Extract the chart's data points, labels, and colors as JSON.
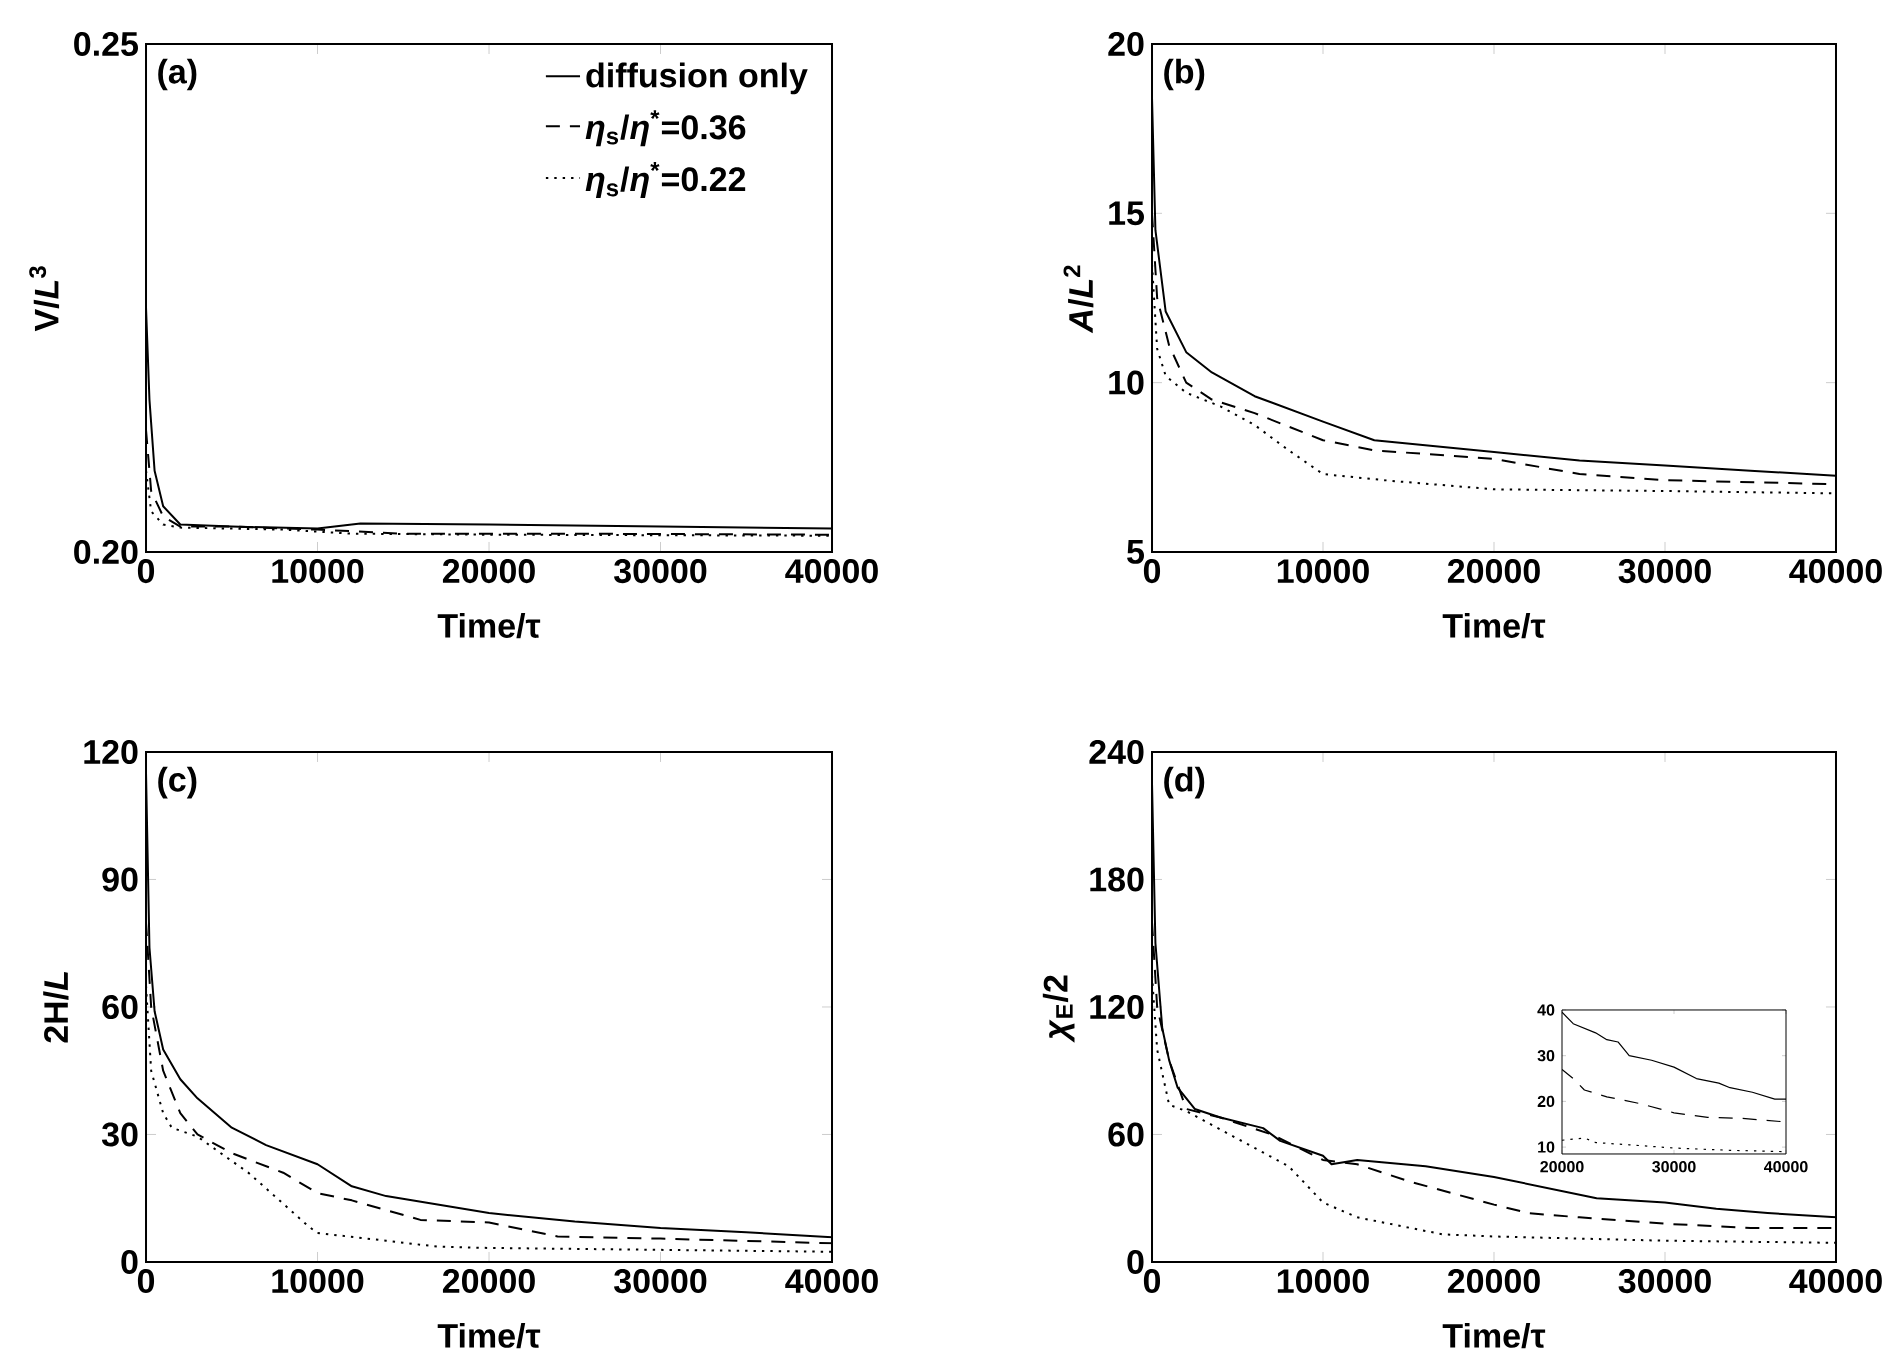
{
  "chart_data": [
    {
      "type": "line",
      "xlabel": "Time/τ",
      "ylabel": "V/*L*$^{3}$",
      "annotations": [
        "(a)"
      ],
      "xlim": [
        0,
        40000
      ],
      "ylim": [
        0.2,
        0.25
      ],
      "xticks": [
        0,
        10000,
        20000,
        30000,
        40000
      ],
      "yticks": [
        {
          "value": 0.2,
          "label": "0.20"
        },
        0.25
      ],
      "legend": "top right",
      "series": [
        {
          "name": "diffusion only",
          "color": "#000000",
          "line_style": "solid",
          "x": [
            0,
            200,
            500,
            1000,
            2000,
            5000,
            10000,
            12500,
            20000,
            30000,
            40000
          ],
          "values": [
            0.224,
            0.215,
            0.208,
            0.2045,
            0.2027,
            0.2025,
            0.2023,
            0.2028,
            0.2027,
            0.2025,
            0.2023
          ]
        },
        {
          "name": "*η*$_{s}$/*η*$^{*}$=0.36",
          "color": "#000000",
          "line_style": "dashed",
          "x": [
            0,
            300,
            1000,
            2000,
            5000,
            10000,
            15000,
            25000,
            40000
          ],
          "values": [
            0.212,
            0.206,
            0.2035,
            0.2025,
            0.2025,
            0.2022,
            0.2018,
            0.2018,
            0.2017
          ]
        },
        {
          "name": "*η*$_{s}$/*η*$^{*}$=0.22",
          "color": "#000000",
          "line_style": "dotted",
          "x": [
            0,
            300,
            1000,
            2000,
            8000,
            12000,
            20000,
            40000
          ],
          "values": [
            0.208,
            0.204,
            0.2027,
            0.2024,
            0.2022,
            0.2018,
            0.2017,
            0.2016
          ]
        }
      ]
    },
    {
      "type": "line",
      "xlabel": "Time/τ",
      "ylabel": "*A*/*L*$^{2}$",
      "annotations": [
        "(b)"
      ],
      "xlim": [
        0,
        40000
      ],
      "ylim": [
        5,
        20
      ],
      "xticks": [
        0,
        10000,
        20000,
        30000,
        40000
      ],
      "yticks": [
        5,
        10,
        15,
        20
      ],
      "series": [
        {
          "color": "#000000",
          "line_style": "solid",
          "x": [
            0,
            200,
            800,
            2000,
            3500,
            6000,
            10000,
            13000,
            20000,
            25000,
            30000,
            35000,
            40000
          ],
          "values": [
            18.4,
            14.5,
            12.1,
            10.9,
            10.3,
            9.6,
            8.85,
            8.3,
            7.95,
            7.7,
            7.55,
            7.4,
            7.25
          ]
        },
        {
          "color": "#000000",
          "line_style": "dashed",
          "x": [
            0,
            300,
            1000,
            2000,
            3500,
            6000,
            10000,
            13000,
            20000,
            25000,
            30000,
            40000
          ],
          "values": [
            15,
            12.5,
            11.1,
            10,
            9.5,
            9.1,
            8.3,
            8,
            7.75,
            7.3,
            7.12,
            7
          ]
        },
        {
          "color": "#000000",
          "line_style": "dotted",
          "x": [
            0,
            300,
            800,
            2000,
            4000,
            6000,
            8000,
            10000,
            14000,
            20000,
            30000,
            40000
          ],
          "values": [
            13.5,
            11,
            10.2,
            9.7,
            9.3,
            8.75,
            8,
            7.3,
            7.1,
            6.85,
            6.8,
            6.73
          ]
        }
      ]
    },
    {
      "type": "line",
      "xlabel": "Time/τ",
      "ylabel": "2H/*L*",
      "annotations": [
        "(c)"
      ],
      "xlim": [
        0,
        40000
      ],
      "ylim": [
        0,
        120
      ],
      "xticks": [
        0,
        10000,
        20000,
        30000,
        40000
      ],
      "yticks": [
        0,
        30,
        60,
        90,
        120
      ],
      "series": [
        {
          "color": "#000000",
          "line_style": "solid",
          "x": [
            0,
            200,
            500,
            1000,
            2000,
            3000,
            5000,
            7000,
            10000,
            12000,
            14000,
            20000,
            25000,
            30000,
            35000,
            40000
          ],
          "values": [
            115,
            74,
            59,
            50,
            43,
            38.5,
            31.6,
            27.5,
            23,
            17.8,
            15.5,
            11.5,
            9.5,
            8,
            7,
            5.8
          ]
        },
        {
          "color": "#000000",
          "line_style": "dashed",
          "x": [
            0,
            300,
            1000,
            2000,
            3000,
            5000,
            8000,
            10000,
            12000,
            16000,
            20000,
            24000,
            30000,
            40000
          ],
          "values": [
            80,
            60,
            45,
            35,
            30,
            25.6,
            21,
            16.2,
            14.5,
            9.9,
            9.3,
            6,
            5.5,
            4.4
          ]
        },
        {
          "color": "#000000",
          "line_style": "dotted",
          "x": [
            0,
            300,
            1000,
            1500,
            3000,
            6000,
            9500,
            10000,
            14000,
            17000,
            20000,
            40000
          ],
          "values": [
            65,
            45,
            35,
            31.6,
            29.5,
            20.9,
            8.3,
            6.8,
            5,
            3.6,
            3.3,
            2.4
          ]
        }
      ]
    },
    {
      "type": "line",
      "xlabel": "Time/τ",
      "ylabel": "*χ*$_{E}$/2",
      "annotations": [
        "(d)"
      ],
      "xlim": [
        0,
        40000
      ],
      "ylim": [
        0,
        240
      ],
      "xticks": [
        0,
        10000,
        20000,
        30000,
        40000
      ],
      "yticks": [
        0,
        60,
        120,
        180,
        240
      ],
      "series": [
        {
          "color": "#000000",
          "line_style": "solid",
          "x": [
            0,
            200,
            600,
            1000,
            1500,
            2500,
            4000,
            6500,
            7500,
            10000,
            10500,
            12000,
            16000,
            20000,
            23000,
            26000,
            30000,
            33000,
            36000,
            40000
          ],
          "values": [
            225,
            150,
            110,
            95,
            82,
            72,
            68,
            63,
            57,
            50,
            46,
            48,
            45,
            40,
            35,
            30,
            28,
            25,
            23,
            21
          ]
        },
        {
          "color": "#000000",
          "line_style": "dashed",
          "x": [
            0,
            300,
            1000,
            2000,
            4000,
            7000,
            10000,
            12000,
            15000,
            20000,
            22000,
            25000,
            30000,
            35000,
            40000
          ],
          "values": [
            160,
            120,
            95,
            72,
            68,
            60,
            48,
            46,
            38,
            27,
            23,
            21,
            18,
            16,
            16
          ]
        },
        {
          "color": "#000000",
          "line_style": "dotted",
          "x": [
            0,
            300,
            1000,
            2000,
            5000,
            8000,
            10000,
            12000,
            17000,
            20000,
            30000,
            40000
          ],
          "values": [
            135,
            100,
            74,
            71,
            58,
            45,
            28,
            21,
            13,
            12,
            10,
            9
          ]
        }
      ]
    },
    {
      "type": "line",
      "xlim": [
        20000,
        40000
      ],
      "ylim": [
        8.5,
        40
      ],
      "xticks": [
        20000,
        30000,
        40000
      ],
      "yticks": [
        10,
        20,
        30,
        40
      ],
      "series": [
        {
          "color": "#000000",
          "line_style": "solid",
          "x": [
            20000,
            21000,
            23000,
            24000,
            25000,
            26000,
            28000,
            30000,
            32000,
            34000,
            35000,
            37000,
            39000,
            40000
          ],
          "values": [
            39.5,
            37,
            35,
            33.5,
            33,
            30,
            29,
            27.5,
            25,
            24,
            23,
            22,
            20.5,
            20.5
          ]
        },
        {
          "color": "#000000",
          "line_style": "dashed",
          "x": [
            20000,
            21000,
            22000,
            24000,
            27000,
            30000,
            33000,
            36000,
            40000
          ],
          "values": [
            27,
            25,
            22.5,
            21,
            19.5,
            17.5,
            16.5,
            16.3,
            15.5
          ]
        },
        {
          "color": "#000000",
          "line_style": "dotted",
          "x": [
            20000,
            22000,
            23000,
            26000,
            30000,
            35000,
            40000
          ],
          "values": [
            11.5,
            12,
            11,
            10.5,
            9.8,
            9.3,
            9
          ]
        }
      ]
    }
  ]
}
